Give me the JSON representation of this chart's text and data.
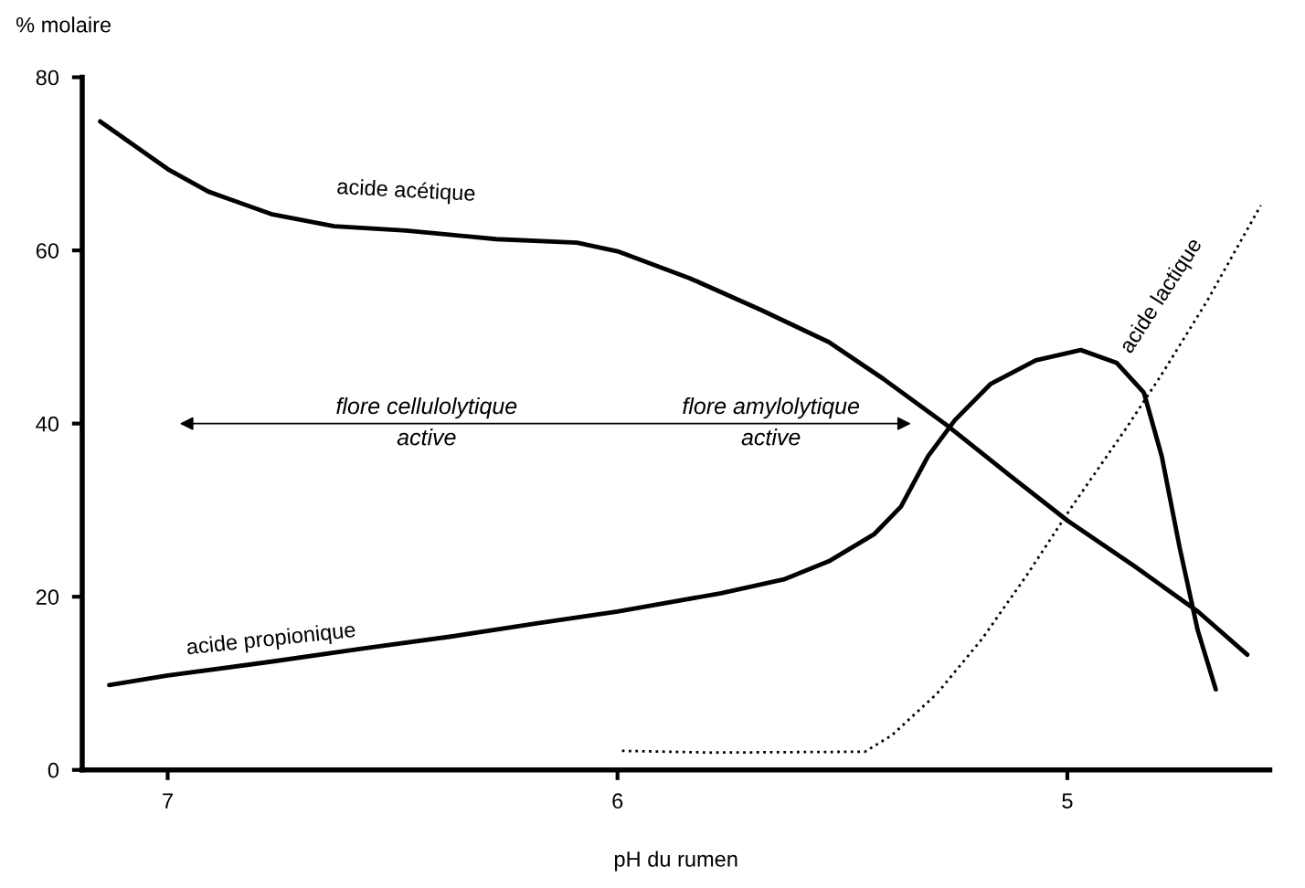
{
  "chart_data": {
    "type": "line",
    "xlabel": "pH du rumen",
    "ylabel": "% molaire",
    "xlim": [
      7.19,
      4.55
    ],
    "ylim": [
      0,
      80
    ],
    "xticks": [
      7,
      6,
      5
    ],
    "yticks": [
      0,
      20,
      40,
      60,
      80
    ],
    "grid": false,
    "legend": false,
    "marker": "none",
    "series": [
      {
        "name": "acide acétique",
        "color": "#000000",
        "line_style": "solid",
        "x": [
          7.15,
          7.0,
          6.91,
          6.77,
          6.63,
          6.47,
          6.27,
          6.09,
          6.0,
          5.84,
          5.68,
          5.53,
          5.41,
          5.27,
          5.13,
          5.0,
          4.85,
          4.71,
          4.6
        ],
        "values": [
          74.9,
          69.4,
          66.8,
          64.2,
          62.8,
          62.3,
          61.3,
          60.9,
          59.9,
          56.8,
          53.1,
          49.4,
          45.2,
          39.9,
          34.1,
          28.8,
          23.5,
          18.3,
          13.3
        ]
      },
      {
        "name": "acide propionique",
        "color": "#000000",
        "line_style": "solid",
        "x": [
          7.13,
          7.0,
          6.77,
          6.57,
          6.37,
          6.17,
          6.0,
          5.77,
          5.63,
          5.53,
          5.43,
          5.37,
          5.31,
          5.25,
          5.17,
          5.07,
          4.97,
          4.89,
          4.83,
          4.79,
          4.75,
          4.71,
          4.67
        ],
        "values": [
          9.8,
          10.9,
          12.5,
          14.0,
          15.4,
          17.0,
          18.3,
          20.4,
          22.0,
          24.1,
          27.2,
          30.4,
          36.2,
          40.4,
          44.6,
          47.3,
          48.5,
          47.0,
          43.6,
          36.2,
          25.6,
          16.1,
          9.3
        ]
      },
      {
        "name": "acide lactique",
        "color": "#000000",
        "line_style": "dotted",
        "x": [
          5.99,
          5.79,
          5.45,
          5.39,
          5.29,
          5.19,
          5.09,
          4.99,
          4.87,
          4.79,
          4.69,
          4.57
        ],
        "values": [
          2.2,
          2.0,
          2.1,
          4.0,
          8.8,
          15.1,
          22.5,
          30.4,
          39.4,
          45.7,
          54.1,
          65.2
        ]
      }
    ],
    "annotations": [
      "flore cellulolytique\nactive",
      "flore amylolytique\nactive"
    ]
  }
}
